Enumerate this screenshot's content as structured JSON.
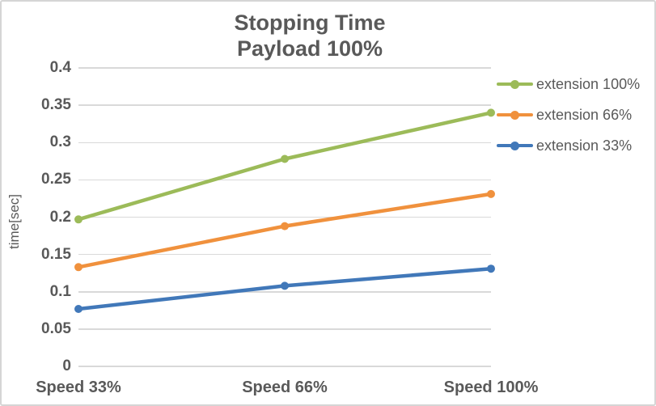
{
  "chart": {
    "title_line1": "Stopping Time",
    "title_line2": "Payload 100%",
    "ylabel": "time[sec]"
  },
  "chart_data": {
    "type": "line",
    "title": "Stopping Time",
    "subtitle": "Payload 100%",
    "categories": [
      "Speed 33%",
      "Speed 66%",
      "Speed 100%"
    ],
    "series": [
      {
        "name": "extension 100%",
        "color": "#9cbb59",
        "values": [
          0.197,
          0.278,
          0.34
        ]
      },
      {
        "name": "extension 66%",
        "color": "#f0913d",
        "values": [
          0.133,
          0.188,
          0.231
        ]
      },
      {
        "name": "extension 33%",
        "color": "#4178b9",
        "values": [
          0.077,
          0.108,
          0.131
        ]
      }
    ],
    "xlabel": "",
    "ylabel": "time[sec]",
    "ylim": [
      0,
      0.4
    ],
    "ytick_step": 0.05,
    "yticks": [
      "0.4",
      "0.35",
      "0.3",
      "0.25",
      "0.2",
      "0.15",
      "0.1",
      "0.05",
      "0"
    ],
    "grid": true,
    "legend_position": "right",
    "marker": "circle",
    "colors": {
      "text": "#595959",
      "gridline": "#d9d9d9",
      "frame_border": "#d5d5d5",
      "background": "#ffffff"
    }
  }
}
